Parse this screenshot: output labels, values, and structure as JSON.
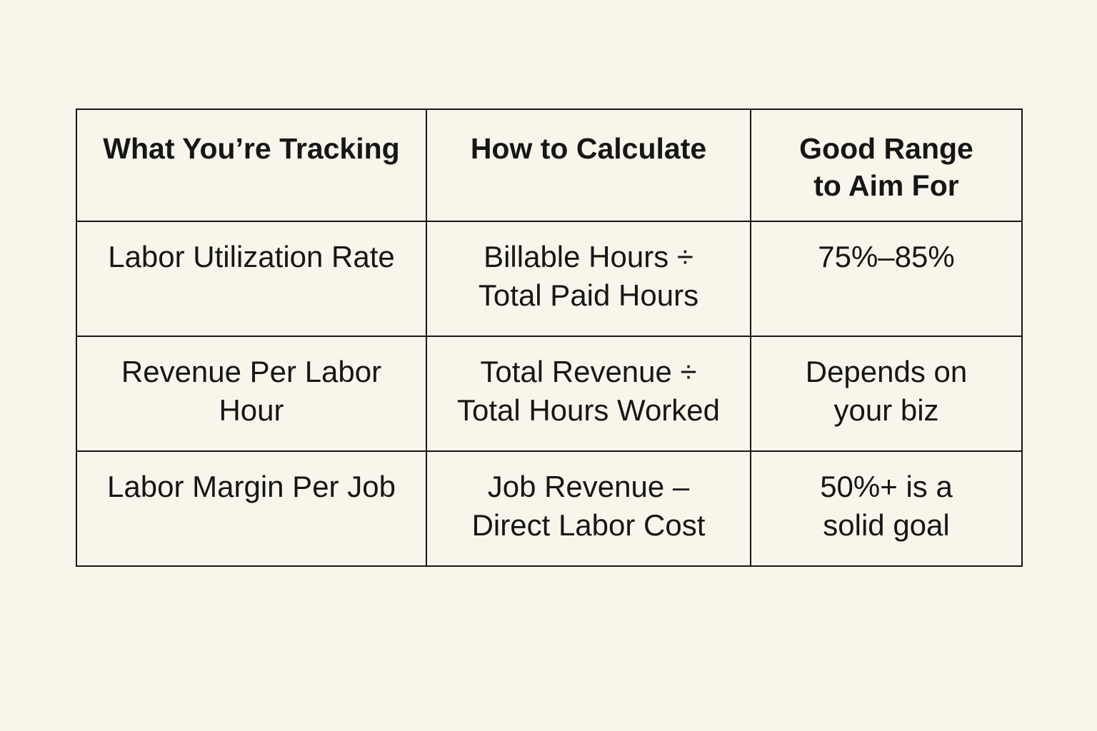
{
  "table": {
    "headers": [
      "What You’re Tracking",
      "How to Calculate",
      "Good Range to Aim For"
    ],
    "rows": [
      [
        "Labor Utilization Rate",
        "Billable Hours ÷ Total Paid Hours",
        "75%–85%"
      ],
      [
        "Revenue Per Labor Hour",
        "Total Revenue ÷ Total Hours Worked",
        "Depends on your biz"
      ],
      [
        "Labor Margin Per Job",
        "Job Revenue – Direct Labor Cost",
        "50%+ is a solid goal"
      ]
    ]
  },
  "colors": {
    "background": "#f8f5eb",
    "border": "#161616",
    "text": "#161616"
  }
}
